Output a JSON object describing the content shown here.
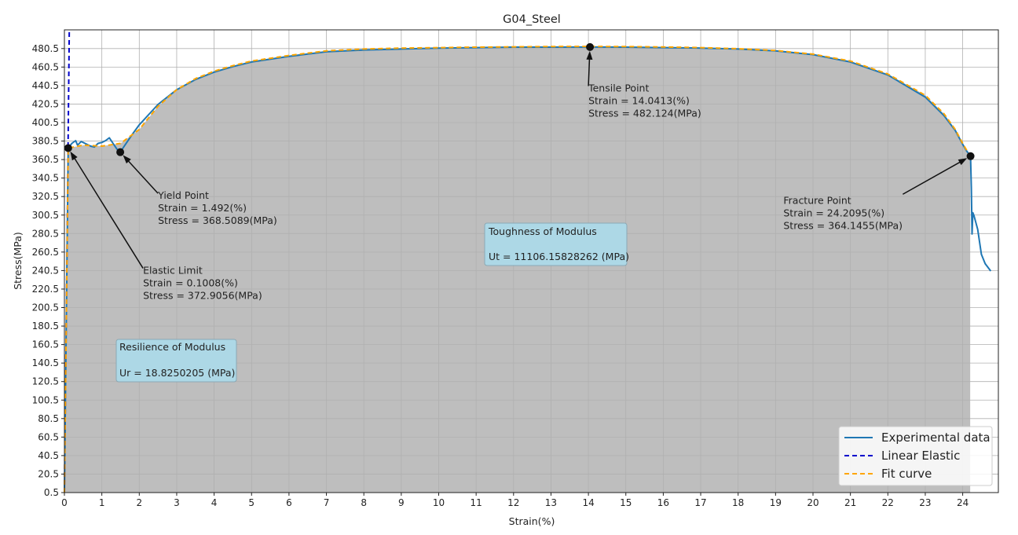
{
  "chart_data": {
    "type": "line",
    "title": "G04_Steel",
    "xlabel": "Strain(%)",
    "ylabel": "Stress(MPa)",
    "xlim": [
      0,
      25
    ],
    "ylim": [
      0.5,
      500
    ],
    "grid": true,
    "legend_position": "bottom-right",
    "x_ticks": [
      0,
      1,
      2,
      3,
      4,
      5,
      6,
      7,
      8,
      9,
      10,
      11,
      12,
      13,
      14,
      15,
      16,
      17,
      18,
      19,
      20,
      21,
      22,
      23,
      24
    ],
    "y_ticks": [
      0.5,
      20.5,
      40.5,
      60.5,
      80.5,
      100.5,
      120.5,
      140.5,
      160.5,
      180.5,
      200.5,
      220.5,
      240.5,
      260.5,
      280.5,
      300.5,
      320.5,
      340.5,
      360.5,
      380.5,
      400.5,
      420.5,
      440.5,
      460.5,
      480.5
    ],
    "series": [
      {
        "name": "Experimental data",
        "color": "#1f77b4",
        "style": "solid",
        "x": [
          0,
          0.1008,
          0.2,
          0.3,
          0.35,
          0.45,
          0.55,
          0.7,
          0.8,
          0.9,
          1.0,
          1.1,
          1.2,
          1.3,
          1.4,
          1.492,
          1.6,
          1.8,
          2.0,
          2.5,
          3.0,
          3.5,
          4.0,
          4.5,
          5.0,
          6.0,
          7.0,
          8.0,
          9.0,
          10.0,
          11.0,
          12.0,
          13.0,
          14.0413,
          15.0,
          16.0,
          17.0,
          18.0,
          19.0,
          20.0,
          21.0,
          22.0,
          23.0,
          23.5,
          23.8,
          24.0,
          24.1,
          24.2095,
          24.23,
          24.25,
          24.27,
          24.3,
          24.4,
          24.5,
          24.6,
          24.75
        ],
        "values": [
          0.5,
          372.9,
          378,
          381,
          376,
          380,
          378,
          375,
          374,
          378,
          379,
          381,
          384,
          378,
          372,
          368.5,
          375,
          387,
          398,
          420,
          436,
          447,
          455,
          461,
          466,
          472,
          477,
          479,
          480,
          481,
          481.5,
          482,
          482,
          482.1,
          482,
          481.5,
          481,
          480,
          478,
          474,
          466,
          452,
          428,
          408,
          392,
          377,
          370,
          364.1,
          330,
          280,
          303,
          300,
          285,
          258,
          248,
          240
        ]
      },
      {
        "name": "Linear Elastic",
        "color": "#0000cc",
        "style": "dashed",
        "x": [
          0,
          0.13
        ],
        "values": [
          0.5,
          500
        ]
      },
      {
        "name": "Fit curve",
        "color": "#ffa500",
        "style": "dashed",
        "x": [
          0,
          0.1008,
          0.5,
          1.0,
          1.5,
          2.0,
          2.5,
          3.0,
          3.5,
          4.0,
          4.5,
          5.0,
          6.0,
          7.0,
          8.0,
          9.0,
          10.0,
          11.0,
          12.0,
          13.0,
          14.0413,
          15.0,
          16.0,
          17.0,
          18.0,
          19.0,
          20.0,
          21.0,
          22.0,
          23.0,
          23.5,
          23.8,
          24.0,
          24.2
        ],
        "values": [
          0.5,
          372.9,
          376,
          375,
          378,
          393,
          418,
          436,
          448,
          456,
          462,
          467,
          473,
          478,
          480,
          481,
          481.5,
          482,
          482.4,
          482.7,
          482.8,
          482.6,
          482.2,
          481.5,
          480.3,
          478.4,
          474.5,
          467,
          453,
          430,
          410,
          393,
          378,
          364
        ]
      }
    ],
    "annotations": [
      {
        "point": [
          0.1008,
          372.9056
        ],
        "text_pos": [
          2.1,
          243
        ],
        "lines": [
          "Elastic Limit",
          "Strain = 0.1008(%)",
          "Stress = 372.9056(MPa)"
        ]
      },
      {
        "point": [
          1.492,
          368.5089
        ],
        "text_pos": [
          2.5,
          324
        ],
        "lines": [
          "Yield Point",
          "Strain = 1.492(%)",
          "Stress = 368.5089(MPa)"
        ]
      },
      {
        "point": [
          14.0413,
          482.124
        ],
        "text_pos": [
          14.0,
          440
        ],
        "lines": [
          "Tensile Point",
          "Strain = 14.0413(%)",
          "Stress = 482.124(MPa)"
        ]
      },
      {
        "point": [
          24.2095,
          364.1455
        ],
        "text_pos": [
          22.4,
          323
        ],
        "lines": [
          "Fracture Point",
          "Strain = 24.2095(%)",
          "Stress = 364.1455(MPa)"
        ]
      }
    ],
    "boxes": [
      {
        "lines": [
          "Toughness of Modulus",
          "",
          "Ut = 11106.15828262 (MPa)"
        ],
        "color": "#add8e6"
      },
      {
        "lines": [
          "Resilience of Modulus",
          "",
          "Ur = 18.8250205 (MPa)"
        ],
        "color": "#add8e6"
      }
    ],
    "fill_color": "#bebebe"
  }
}
